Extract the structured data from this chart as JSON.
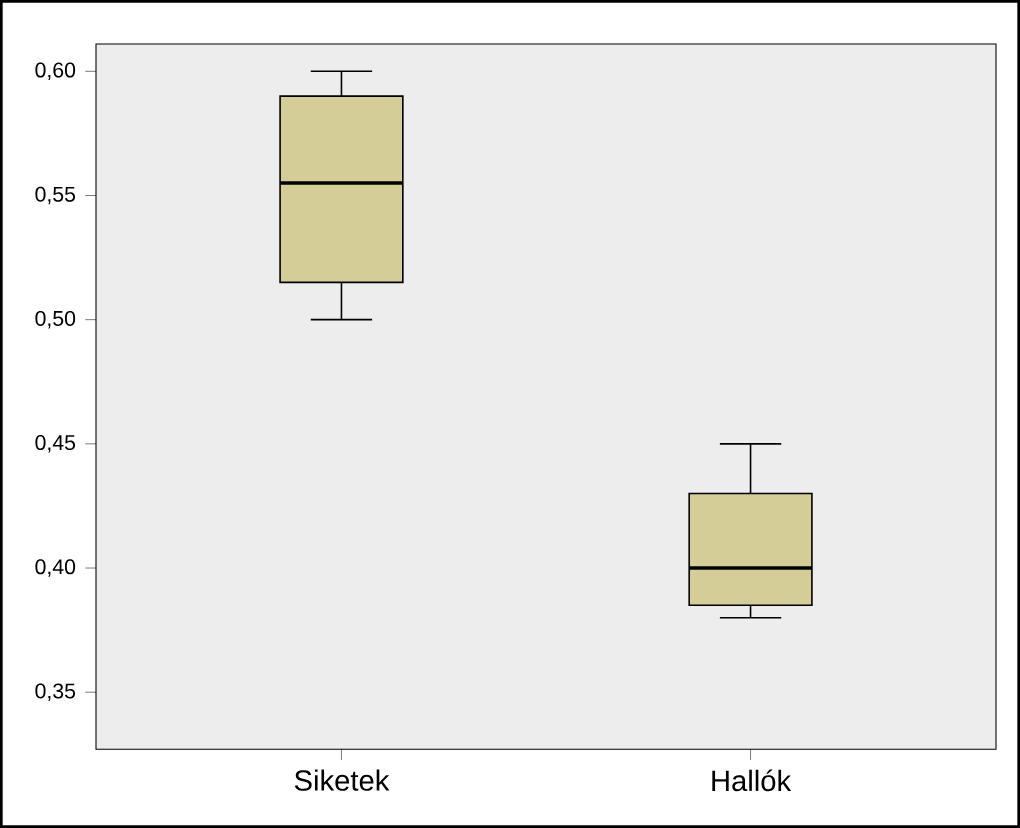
{
  "chart_data": {
    "type": "box",
    "categories": [
      "Siketek",
      "Hallók"
    ],
    "boxes": [
      {
        "low": 0.5,
        "q1": 0.515,
        "median": 0.555,
        "q3": 0.59,
        "high": 0.6
      },
      {
        "low": 0.38,
        "q1": 0.385,
        "median": 0.4,
        "q3": 0.43,
        "high": 0.45
      }
    ],
    "color": "#d4cd98",
    "ylim": [
      0.327,
      0.611
    ],
    "yticks": [
      {
        "value": 0.35,
        "label": "0,35"
      },
      {
        "value": 0.4,
        "label": "0,40"
      },
      {
        "value": 0.45,
        "label": "0,45"
      },
      {
        "value": 0.5,
        "label": "0,50"
      },
      {
        "value": 0.55,
        "label": "0,55"
      },
      {
        "value": 0.6,
        "label": "0,60"
      }
    ],
    "grid": false
  }
}
